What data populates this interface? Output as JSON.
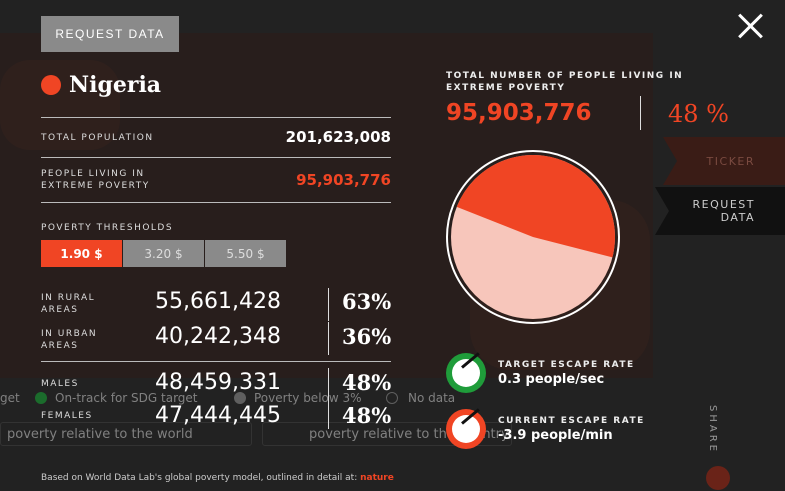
{
  "request_button": "REQUEST DATA",
  "country": "Nigeria",
  "total_population": {
    "label": "TOTAL POPULATION",
    "value": "201,623,008"
  },
  "poverty_people": {
    "label_line1": "PEOPLE LIVING IN",
    "label_line2": "EXTREME POVERTY",
    "value": "95,903,776"
  },
  "thresholds": {
    "label": "POVERTY THRESHOLDS",
    "options": [
      "1.90 $",
      "3.20 $",
      "5.50 $"
    ],
    "selected": 0
  },
  "rural": {
    "label_line1": "IN RURAL",
    "label_line2": "AREAS",
    "value": "55,661,428",
    "pct": "63%"
  },
  "urban": {
    "label_line1": "IN URBAN",
    "label_line2": "AREAS",
    "value": "40,242,348",
    "pct": "36%"
  },
  "males": {
    "label": "MALES",
    "value": "48,459,331",
    "pct": "48%"
  },
  "females": {
    "label": "FEMALES",
    "value": "47,444,445",
    "pct": "48%"
  },
  "total_extreme": {
    "label_line1": "TOTAL NUMBER OF PEOPLE LIVING IN",
    "label_line2": "EXTREME POVERTY",
    "value": "95,903,776",
    "pct": "48 %"
  },
  "pie_share": 0.48,
  "side_tabs": {
    "ticker": "TICKER",
    "request_line1": "REQUEST",
    "request_line2": "DATA"
  },
  "target_rate": {
    "label": "TARGET ESCAPE RATE",
    "value": "0.3 people/sec"
  },
  "current_rate": {
    "label": "CURRENT ESCAPE RATE",
    "value": "-3.9 people/min"
  },
  "background_legend": {
    "t1": "get",
    "t2": "On-track for SDG target",
    "t3": "Poverty below 3%",
    "t4": "No data",
    "pill1": "poverty relative to the world",
    "pill2": "poverty relative to the country"
  },
  "share": "SHARE",
  "footer": {
    "text": "Based on World Data Lab's global poverty model, outlined in detail at: ",
    "link": "nature"
  },
  "colors": {
    "accent": "#f04524",
    "pie_light": "#f7c6bb",
    "green": "#1f9c3a"
  }
}
